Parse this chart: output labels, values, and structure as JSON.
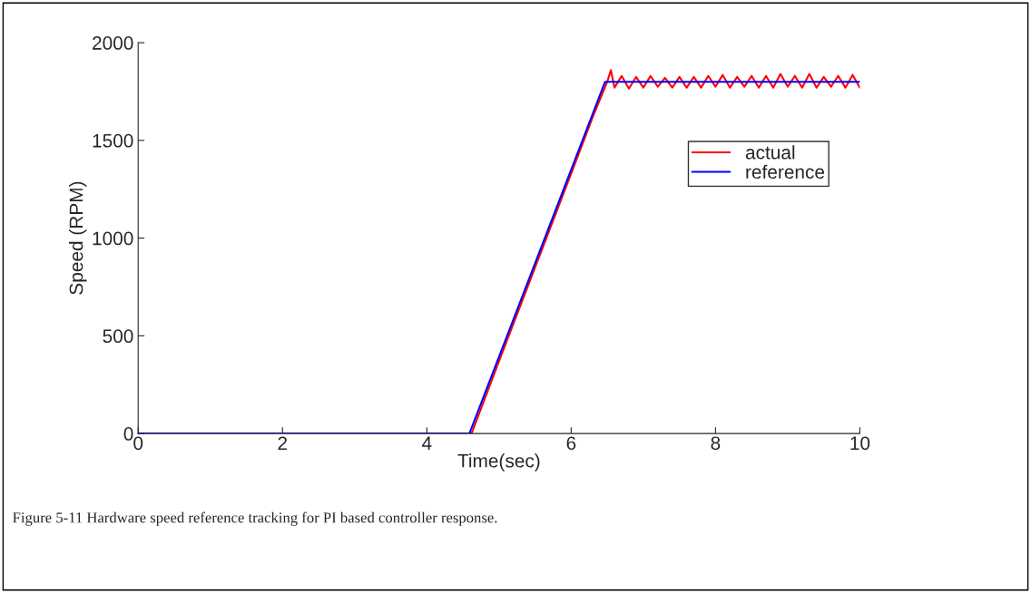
{
  "chart_data": {
    "type": "line",
    "xlabel": "Time(sec)",
    "ylabel": "Speed (RPM)",
    "xlim": [
      0,
      10
    ],
    "ylim": [
      0,
      2000
    ],
    "xticks": [
      0,
      2,
      4,
      6,
      8,
      10
    ],
    "yticks": [
      0,
      500,
      1000,
      1500,
      2000
    ],
    "grid": false,
    "legend": "right",
    "marker": "none",
    "line_style": "solid",
    "annotations": [
      "Figure 5-11 Hardware speed reference tracking for PI based controller response."
    ],
    "series": [
      {
        "name": "actual",
        "color": "#ff0000",
        "x": [
          0,
          4.62,
          5.0,
          5.5,
          6.0,
          6.3,
          6.5,
          6.55,
          6.6,
          6.7,
          6.8,
          6.9,
          7.0,
          7.1,
          7.2,
          7.3,
          7.4,
          7.5,
          7.6,
          7.7,
          7.8,
          7.9,
          8.0,
          8.1,
          8.2,
          8.3,
          8.4,
          8.5,
          8.6,
          8.7,
          8.8,
          8.9,
          9.0,
          9.1,
          9.2,
          9.3,
          9.4,
          9.5,
          9.6,
          9.7,
          9.8,
          9.9,
          10.0
        ],
        "values": [
          0,
          0,
          370,
          850,
          1330,
          1620,
          1800,
          1860,
          1770,
          1830,
          1765,
          1825,
          1770,
          1830,
          1775,
          1820,
          1770,
          1825,
          1770,
          1825,
          1770,
          1830,
          1775,
          1835,
          1770,
          1825,
          1775,
          1830,
          1770,
          1830,
          1770,
          1840,
          1775,
          1830,
          1770,
          1840,
          1770,
          1825,
          1775,
          1830,
          1770,
          1835,
          1770
        ]
      },
      {
        "name": "reference",
        "color": "#0000ff",
        "x": [
          0,
          4.59,
          6.47,
          10
        ],
        "values": [
          0,
          0,
          1800,
          1800
        ]
      }
    ]
  }
}
